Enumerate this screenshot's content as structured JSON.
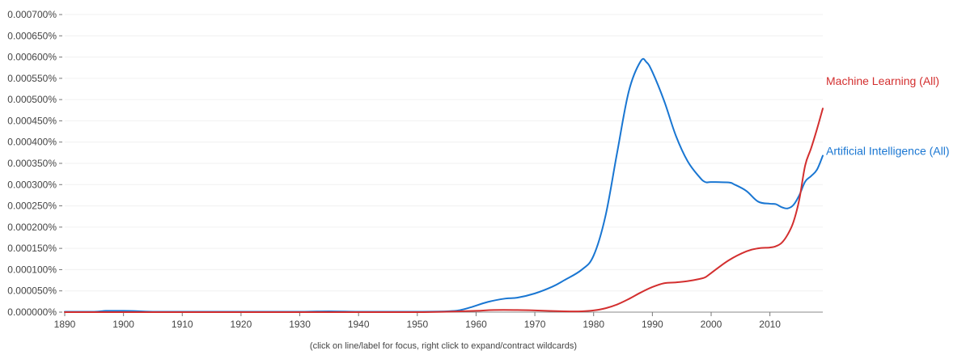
{
  "chart_data": {
    "type": "line",
    "xlim": [
      1890,
      2019
    ],
    "ylim": [
      0,
      0.0007
    ],
    "grid": true,
    "legend": "labels at line ends, right",
    "y_ticks": [
      "0.000000%",
      "0.000050%",
      "0.000100%",
      "0.000150%",
      "0.000200%",
      "0.000250%",
      "0.000300%",
      "0.000350%",
      "0.000400%",
      "0.000450%",
      "0.000500%",
      "0.000550%",
      "0.000600%",
      "0.000650%",
      "0.000700%"
    ],
    "y_tick_values": [
      0,
      5e-05,
      0.0001,
      0.00015,
      0.0002,
      0.00025,
      0.0003,
      0.00035,
      0.0004,
      0.00045,
      0.0005,
      0.00055,
      0.0006,
      0.00065,
      0.0007
    ],
    "x_ticks": [
      "1890",
      "1900",
      "1910",
      "1920",
      "1930",
      "1940",
      "1950",
      "1960",
      "1970",
      "1980",
      "1990",
      "2000",
      "2010"
    ],
    "x_tick_values": [
      1890,
      1900,
      1910,
      1920,
      1930,
      1940,
      1950,
      1960,
      1970,
      1980,
      1990,
      2000,
      2010
    ],
    "series": [
      {
        "name": "Artificial Intelligence (All)",
        "color": "#1976d2",
        "x": [
          1890,
          1895,
          1897,
          1900,
          1903,
          1905,
          1910,
          1920,
          1930,
          1935,
          1940,
          1945,
          1950,
          1955,
          1957,
          1959,
          1962,
          1965,
          1967,
          1970,
          1973,
          1975,
          1978,
          1980,
          1982,
          1984,
          1986,
          1988,
          1989,
          1990,
          1992,
          1994,
          1996,
          1998,
          1999,
          2000,
          2003,
          2004,
          2006,
          2008,
          2010,
          2011,
          2012,
          2013,
          2014,
          2015,
          2016,
          2017,
          2018,
          2019
        ],
        "y": [
          1e-06,
          1e-06,
          3e-06,
          3e-06,
          2e-06,
          1e-06,
          1e-06,
          1e-06,
          1e-06,
          2e-06,
          1e-06,
          1e-06,
          1e-06,
          2e-06,
          4e-06,
          1.1e-05,
          2.4e-05,
          3.2e-05,
          3.4e-05,
          4.4e-05,
          6e-05,
          7.5e-05,
          0.0001,
          0.000133,
          0.000225,
          0.000375,
          0.00052,
          0.00059,
          0.000588,
          0.000565,
          0.000497,
          0.000415,
          0.000355,
          0.000318,
          0.000306,
          0.000306,
          0.000305,
          0.0003,
          0.000285,
          0.00026,
          0.000255,
          0.000254,
          0.000247,
          0.000244,
          0.000252,
          0.000275,
          0.000307,
          0.00032,
          0.000335,
          0.000368
        ]
      },
      {
        "name": "Machine Learning (All)",
        "color": "#d32f2f",
        "x": [
          1890,
          1900,
          1940,
          1950,
          1955,
          1960,
          1963,
          1967,
          1970,
          1975,
          1978,
          1980,
          1982,
          1984,
          1986,
          1988,
          1990,
          1992,
          1994,
          1996,
          1998,
          1999,
          2000,
          2003,
          2006,
          2008,
          2010,
          2011,
          2012,
          2013,
          2014,
          2015,
          2016,
          2017,
          2018,
          2019
        ],
        "y": [
          0,
          0,
          0,
          0,
          1e-06,
          3e-06,
          5e-06,
          5e-06,
          4e-06,
          2e-06,
          2e-06,
          4e-06,
          9e-06,
          1.8e-05,
          3.1e-05,
          4.6e-05,
          5.9e-05,
          6.8e-05,
          7e-05,
          7.3e-05,
          7.8e-05,
          8.2e-05,
          9.2e-05,
          0.000122,
          0.000143,
          0.00015,
          0.000152,
          0.000155,
          0.000163,
          0.000182,
          0.000212,
          0.000265,
          0.000345,
          0.000385,
          0.00043,
          0.000479
        ]
      }
    ]
  },
  "footer": {
    "note": "(click on line/label for focus, right click to expand/contract wildcards)"
  }
}
